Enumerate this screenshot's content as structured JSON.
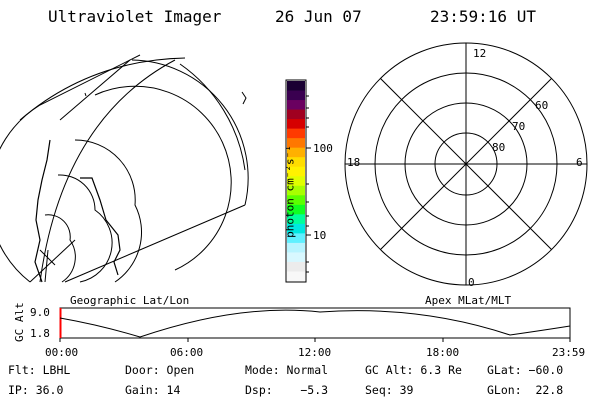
{
  "header": {
    "title": "Ultraviolet Imager",
    "date": "26 Jun 07",
    "time": "23:59:16 UT"
  },
  "colorbar": {
    "unit_label": "photon cm⁻²s⁻¹",
    "tick_labels": [
      "100",
      "10"
    ],
    "colors": [
      "#1a0033",
      "#3a0050",
      "#6a0060",
      "#a00020",
      "#d60000",
      "#ff3a00",
      "#ff7800",
      "#ffb000",
      "#ffdd00",
      "#fff200",
      "#e0ff00",
      "#a8ff00",
      "#5cff00",
      "#10ff20",
      "#00ff9a",
      "#00e8e0",
      "#60f0ff",
      "#b8f4ff",
      "#d8f8ff",
      "#ececec",
      "#f8f8f8"
    ]
  },
  "left_map": {
    "label": "Geographic Lat/Lon"
  },
  "polar_plot": {
    "label": "Apex MLat/MLT",
    "mlt_labels": [
      "12",
      "18",
      "6",
      "0"
    ],
    "mlat_labels": [
      "60",
      "70",
      "80"
    ]
  },
  "timeline": {
    "ylabel": "GC Alt",
    "y_ticks": [
      "9.0",
      "1.8"
    ],
    "x_ticks": [
      "00:00",
      "06:00",
      "12:00",
      "18:00",
      "23:59"
    ],
    "marker_color": "#ff0000"
  },
  "info": {
    "row1": {
      "flt": "Flt: LBHL",
      "door": "Door: Open",
      "mode": "Mode: Normal",
      "gc_alt": "GC Alt: 6.3 Re",
      "glat": "GLat: −60.0"
    },
    "row2": {
      "ip": "IP: 36.0",
      "gain": "Gain: 14",
      "dsp": "Dsp:    −5.3",
      "seq": "Seq: 39",
      "glon": "GLon:  22.8"
    }
  }
}
